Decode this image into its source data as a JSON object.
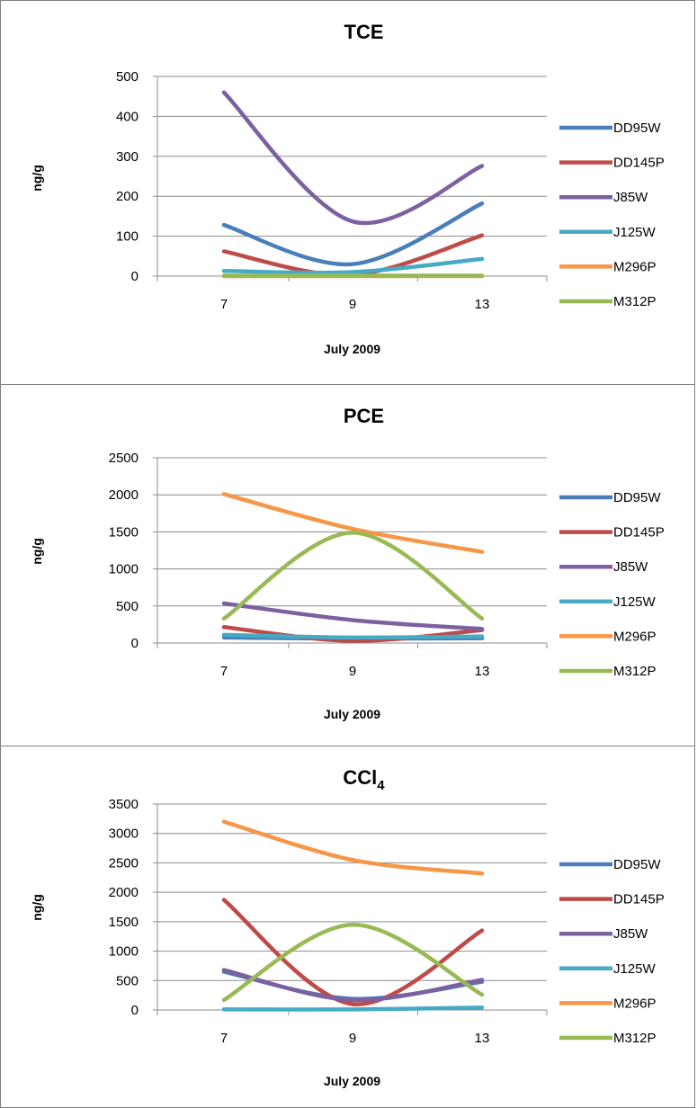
{
  "chart_data": [
    {
      "type": "line",
      "title": "TCE",
      "title_subscript": "",
      "xlabel": "July 2009",
      "ylabel": "ng/g",
      "categories": [
        "7",
        "9",
        "13"
      ],
      "ylim": [
        0,
        500
      ],
      "yticks": [
        0,
        100,
        200,
        300,
        400,
        500
      ],
      "grid": true,
      "smooth": true,
      "legend_position": "right",
      "series": [
        {
          "name": "DD95W",
          "color": "#4a7ebb",
          "values": [
            128,
            30,
            182
          ]
        },
        {
          "name": "DD145P",
          "color": "#be4b48",
          "values": [
            62,
            3,
            102
          ]
        },
        {
          "name": "J85W",
          "color": "#7d60a0",
          "values": [
            460,
            137,
            276
          ]
        },
        {
          "name": "J125W",
          "color": "#46aac5",
          "values": [
            13,
            10,
            43
          ]
        },
        {
          "name": "M296P",
          "color": "#f79646",
          "values": [
            0,
            0,
            0
          ]
        },
        {
          "name": "M312P",
          "color": "#98b954",
          "values": [
            1,
            1,
            1
          ]
        }
      ]
    },
    {
      "type": "line",
      "title": "PCE",
      "title_subscript": "",
      "xlabel": "July 2009",
      "ylabel": "ng/g",
      "categories": [
        "7",
        "9",
        "13"
      ],
      "ylim": [
        0,
        2500
      ],
      "yticks": [
        0,
        500,
        1000,
        1500,
        2000,
        2500
      ],
      "grid": true,
      "smooth": true,
      "legend_position": "right",
      "series": [
        {
          "name": "DD95W",
          "color": "#4a7ebb",
          "values": [
            75,
            60,
            65
          ]
        },
        {
          "name": "DD145P",
          "color": "#be4b48",
          "values": [
            215,
            30,
            175
          ]
        },
        {
          "name": "J85W",
          "color": "#7d60a0",
          "values": [
            535,
            310,
            190
          ]
        },
        {
          "name": "J125W",
          "color": "#46aac5",
          "values": [
            110,
            75,
            90
          ]
        },
        {
          "name": "M296P",
          "color": "#f79646",
          "values": [
            2010,
            1540,
            1230
          ]
        },
        {
          "name": "M312P",
          "color": "#98b954",
          "values": [
            330,
            1490,
            330
          ]
        }
      ]
    },
    {
      "type": "line",
      "title": "CCl",
      "title_subscript": "4",
      "xlabel": "July 2009",
      "ylabel": "ng/g",
      "categories": [
        "7",
        "9",
        "13"
      ],
      "ylim": [
        0,
        3500
      ],
      "yticks": [
        0,
        500,
        1000,
        1500,
        2000,
        2500,
        3000,
        3500
      ],
      "grid": true,
      "smooth": true,
      "legend_position": "right",
      "series": [
        {
          "name": "DD95W",
          "color": "#4a7ebb",
          "values": [
            650,
            190,
            480
          ]
        },
        {
          "name": "DD145P",
          "color": "#be4b48",
          "values": [
            1870,
            100,
            1350
          ]
        },
        {
          "name": "J85W",
          "color": "#7d60a0",
          "values": [
            680,
            170,
            510
          ]
        },
        {
          "name": "J125W",
          "color": "#46aac5",
          "values": [
            10,
            10,
            40
          ]
        },
        {
          "name": "M296P",
          "color": "#f79646",
          "values": [
            3200,
            2550,
            2320
          ]
        },
        {
          "name": "M312P",
          "color": "#98b954",
          "values": [
            170,
            1450,
            260
          ]
        }
      ]
    }
  ]
}
